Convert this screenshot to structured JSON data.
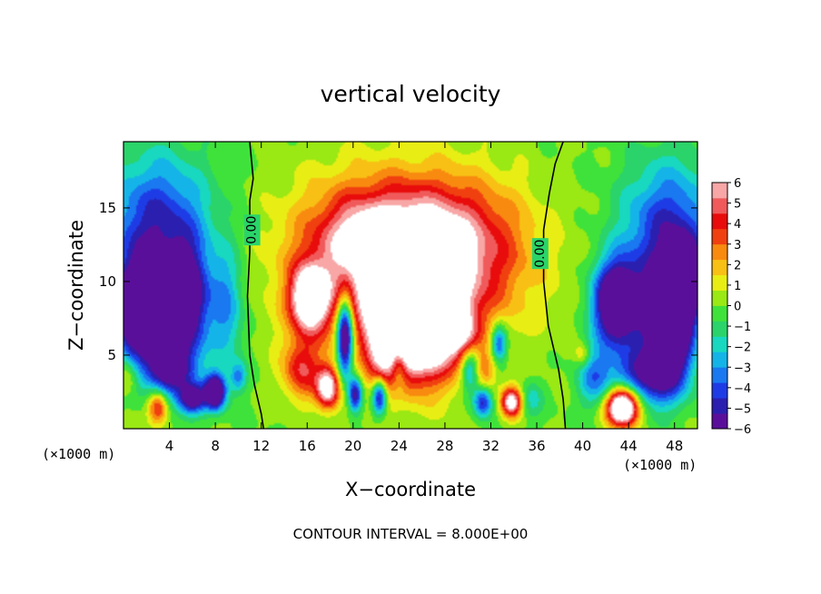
{
  "chart_data": {
    "type": "heatmap",
    "title": "vertical velocity",
    "xlabel": "X−coordinate",
    "ylabel": "Z−coordinate",
    "x_unit_label": "(×1000 m)",
    "z_unit_label": "(×1000 m)",
    "xlim": [
      0,
      50
    ],
    "zlim": [
      0,
      19.5
    ],
    "x_ticks": [
      4,
      8,
      12,
      16,
      20,
      24,
      28,
      32,
      36,
      40,
      44,
      48
    ],
    "z_ticks": [
      5,
      10,
      15
    ],
    "colorbar": {
      "min": -6,
      "max": 6,
      "tick_values": [
        6,
        5,
        4,
        3,
        2,
        1,
        0,
        -1,
        -2,
        -3,
        -4,
        -5,
        -6
      ],
      "tick_labels": [
        "6",
        "5",
        "4",
        "3",
        "2",
        "1",
        "0",
        "−1",
        "−2",
        "−3",
        "−4",
        "−5",
        "−6"
      ],
      "colors": [
        "#5a0f9a",
        "#2b1fb0",
        "#1e3ce6",
        "#1a78f0",
        "#14b4e8",
        "#18d8c0",
        "#2ad46a",
        "#3fe23a",
        "#9ae814",
        "#e8ee14",
        "#f8c014",
        "#f88a10",
        "#f04010",
        "#e80c0c",
        "#f05a5a",
        "#f8a6a6"
      ],
      "above_max_color": "#ffffff"
    },
    "contour_labels": [
      {
        "text": "0.00",
        "x": 11.2,
        "z": 13.5
      },
      {
        "text": "0.00",
        "x": 36.3,
        "z": 11.9
      }
    ],
    "zero_contours": [
      [
        [
          11.0,
          19.5
        ],
        [
          11.3,
          17.0
        ],
        [
          11.0,
          15.5
        ],
        [
          11.0,
          12.0
        ],
        [
          10.8,
          9.0
        ],
        [
          11.0,
          5.0
        ],
        [
          11.4,
          3.0
        ],
        [
          12.0,
          1.0
        ],
        [
          12.2,
          0
        ]
      ],
      [
        [
          38.3,
          19.5
        ],
        [
          37.6,
          18.0
        ],
        [
          37.1,
          16.0
        ],
        [
          36.6,
          13.5
        ],
        [
          36.6,
          10.0
        ],
        [
          37.0,
          7.0
        ],
        [
          37.9,
          4.0
        ],
        [
          38.3,
          2.0
        ],
        [
          38.5,
          0
        ]
      ]
    ],
    "field_features": [
      {
        "x": 25.5,
        "z": 7.5,
        "sx": 3.6,
        "sz": 3.8,
        "amp": 13
      },
      {
        "x": 26.0,
        "z": 12.5,
        "sx": 7.0,
        "sz": 4.2,
        "amp": 6.0
      },
      {
        "x": 20.0,
        "z": 11.0,
        "sx": 7.0,
        "sz": 6.0,
        "amp": 3.0
      },
      {
        "x": 30.0,
        "z": 11.0,
        "sx": 7.0,
        "sz": 6.0,
        "amp": 2.0
      },
      {
        "x": 16.2,
        "z": 8.8,
        "sx": 1.6,
        "sz": 2.2,
        "amp": 8
      },
      {
        "x": 17.8,
        "z": 2.8,
        "sx": 1.0,
        "sz": 1.4,
        "amp": 7
      },
      {
        "x": 15.5,
        "z": 4.0,
        "sx": 1.6,
        "sz": 2.0,
        "amp": 4
      },
      {
        "x": 22.5,
        "z": 5.0,
        "sx": 1.2,
        "sz": 2.2,
        "amp": 3
      },
      {
        "x": 20.5,
        "z": 13.0,
        "sx": 3.5,
        "sz": 2.5,
        "amp": 2
      },
      {
        "x": 29.5,
        "z": 6.5,
        "sx": 1.4,
        "sz": 1.5,
        "amp": 3
      },
      {
        "x": 33.8,
        "z": 1.8,
        "sx": 0.9,
        "sz": 1.0,
        "amp": 7
      },
      {
        "x": 31.5,
        "z": 4.0,
        "sx": 1.0,
        "sz": 1.2,
        "amp": 2
      },
      {
        "x": 19.3,
        "z": 6.3,
        "sx": 0.7,
        "sz": 2.6,
        "amp": -9
      },
      {
        "x": 20.2,
        "z": 2.3,
        "sx": 0.6,
        "sz": 1.2,
        "amp": -6
      },
      {
        "x": 22.3,
        "z": 2.2,
        "sx": 0.6,
        "sz": 1.2,
        "amp": -6
      },
      {
        "x": 24.0,
        "z": 4.5,
        "sx": 0.7,
        "sz": 1.8,
        "amp": -3
      },
      {
        "x": 30.2,
        "z": 4.0,
        "sx": 0.8,
        "sz": 1.5,
        "amp": -4
      },
      {
        "x": 31.3,
        "z": 1.8,
        "sx": 0.8,
        "sz": 1.0,
        "amp": -5
      },
      {
        "x": 32.7,
        "z": 5.8,
        "sx": 0.7,
        "sz": 1.3,
        "amp": -5
      },
      {
        "x": 35.5,
        "z": 2.0,
        "sx": 1.0,
        "sz": 1.3,
        "amp": -2
      },
      {
        "x": 3.0,
        "z": 13.5,
        "sx": 4.5,
        "sz": 5.0,
        "amp": -5
      },
      {
        "x": 1.5,
        "z": 8.0,
        "sx": 2.2,
        "sz": 3.2,
        "amp": -9
      },
      {
        "x": 5.5,
        "z": 8.5,
        "sx": 1.8,
        "sz": 3.5,
        "amp": -7
      },
      {
        "x": 4.0,
        "z": 4.0,
        "sx": 2.2,
        "sz": 2.0,
        "amp": -6
      },
      {
        "x": 6.0,
        "z": 2.0,
        "sx": 1.2,
        "sz": 1.0,
        "amp": -6
      },
      {
        "x": 8.0,
        "z": 2.5,
        "sx": 0.9,
        "sz": 1.2,
        "amp": -8
      },
      {
        "x": 9.0,
        "z": 8.0,
        "sx": 1.5,
        "sz": 4.0,
        "amp": -3
      },
      {
        "x": 10.0,
        "z": 3.5,
        "sx": 0.7,
        "sz": 1.0,
        "amp": -3
      },
      {
        "x": 3.0,
        "z": 1.5,
        "sx": 0.9,
        "sz": 1.2,
        "amp": 5
      },
      {
        "x": 0.3,
        "z": 3.5,
        "sx": 0.8,
        "sz": 1.2,
        "amp": 2
      },
      {
        "x": 47.5,
        "z": 13.0,
        "sx": 4.0,
        "sz": 5.0,
        "amp": -5
      },
      {
        "x": 43.0,
        "z": 8.5,
        "sx": 2.0,
        "sz": 2.8,
        "amp": -9
      },
      {
        "x": 47.5,
        "z": 7.0,
        "sx": 2.0,
        "sz": 3.5,
        "amp": -10
      },
      {
        "x": 49.0,
        "z": 10.0,
        "sx": 1.2,
        "sz": 2.5,
        "amp": -6
      },
      {
        "x": 45.5,
        "z": 3.5,
        "sx": 3.0,
        "sz": 2.0,
        "amp": -5
      },
      {
        "x": 41.0,
        "z": 3.5,
        "sx": 1.5,
        "sz": 2.0,
        "amp": -3
      },
      {
        "x": 40.0,
        "z": 5.0,
        "sx": 0.7,
        "sz": 0.8,
        "amp": 2
      },
      {
        "x": 43.5,
        "z": 1.5,
        "sx": 1.4,
        "sz": 1.3,
        "amp": 11
      }
    ],
    "contour_interval_text": "CONTOUR INTERVAL = 8.000E+00"
  }
}
